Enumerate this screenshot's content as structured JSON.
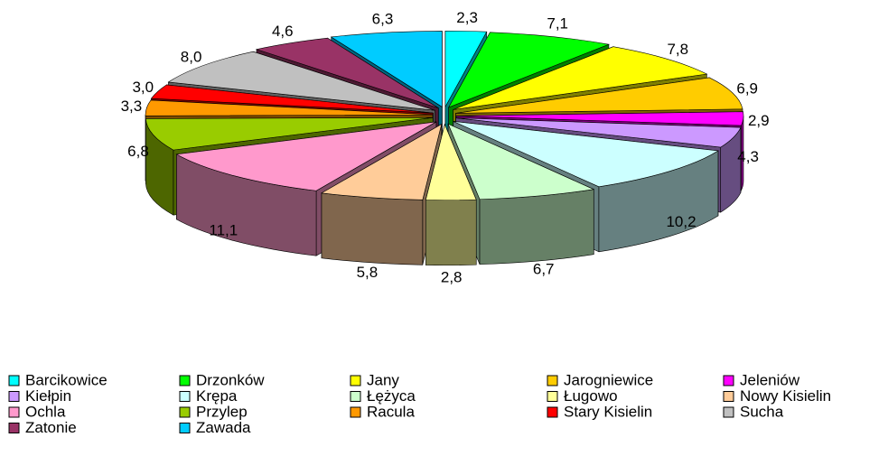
{
  "chart_data": {
    "type": "pie",
    "categories": [
      "Barcikowice",
      "Drzonków",
      "Jany",
      "Jarogniewice",
      "Jeleniów",
      "Kiełpin",
      "Krępa",
      "Łężyca",
      "Ługowo",
      "Nowy Kisielin",
      "Ochla",
      "Przylep",
      "Racula",
      "Stary Kisielin",
      "Sucha",
      "Zatonie",
      "Zawada"
    ],
    "values": [
      2.3,
      7.1,
      7.8,
      6.9,
      2.9,
      4.3,
      10.2,
      6.7,
      2.8,
      5.8,
      11.1,
      6.8,
      3.3,
      3.0,
      8.0,
      4.6,
      6.3
    ],
    "value_labels": [
      "2,3",
      "7,1",
      "7,8",
      "6,9",
      "2,9",
      "4,3",
      "10,2",
      "6,7",
      "2,8",
      "5,8",
      "11,1",
      "6,8",
      "3,3",
      "3,0",
      "8,0",
      "4,6",
      "6,3"
    ],
    "colors": [
      "#00ffff",
      "#00ff00",
      "#ffff00",
      "#ffcc00",
      "#ff00ff",
      "#cc99ff",
      "#ccffff",
      "#ccffcc",
      "#ffff99",
      "#ffcc99",
      "#ff99cc",
      "#99cc00",
      "#ff9900",
      "#ff0000",
      "#c0c0c0",
      "#993366",
      "#00ccff"
    ],
    "legend_position": "bottom"
  }
}
